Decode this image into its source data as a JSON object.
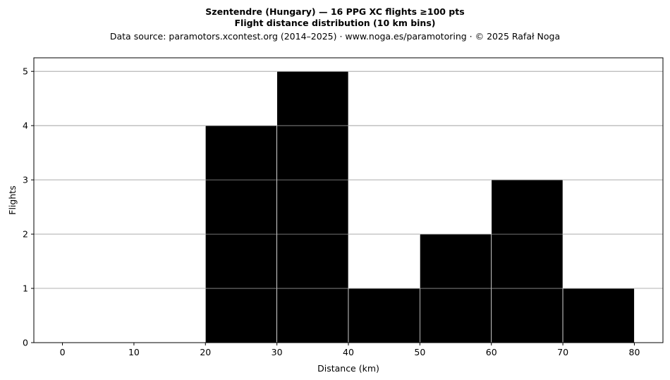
{
  "chart_data": {
    "type": "bar",
    "title_line1": "Szentendre (Hungary)  —  16 PPG XC flights ≥100 pts",
    "title_line2": "Flight distance distribution (10 km bins)",
    "subtitle": "Data source: paramotors.xcontest.org (2014–2025)  ·  www.noga.es/paramotoring  ·  © 2025 Rafał Noga",
    "xlabel": "Distance (km)",
    "ylabel": "Flights",
    "bins": [
      {
        "x0": 0,
        "x1": 10,
        "count": 0
      },
      {
        "x0": 10,
        "x1": 20,
        "count": 0
      },
      {
        "x0": 20,
        "x1": 30,
        "count": 4
      },
      {
        "x0": 30,
        "x1": 40,
        "count": 5
      },
      {
        "x0": 40,
        "x1": 50,
        "count": 1
      },
      {
        "x0": 50,
        "x1": 60,
        "count": 2
      },
      {
        "x0": 60,
        "x1": 70,
        "count": 3
      },
      {
        "x0": 70,
        "x1": 80,
        "count": 1
      }
    ],
    "xlim": [
      -4,
      84
    ],
    "ylim": [
      0,
      5.25
    ],
    "xticks": [
      "0",
      "10",
      "20",
      "30",
      "40",
      "50",
      "60",
      "70",
      "80"
    ],
    "yticks": [
      "0",
      "1",
      "2",
      "3",
      "4",
      "5"
    ],
    "grid": "y",
    "bar_color": "#000000",
    "grid_color": "#b0b0b0"
  }
}
